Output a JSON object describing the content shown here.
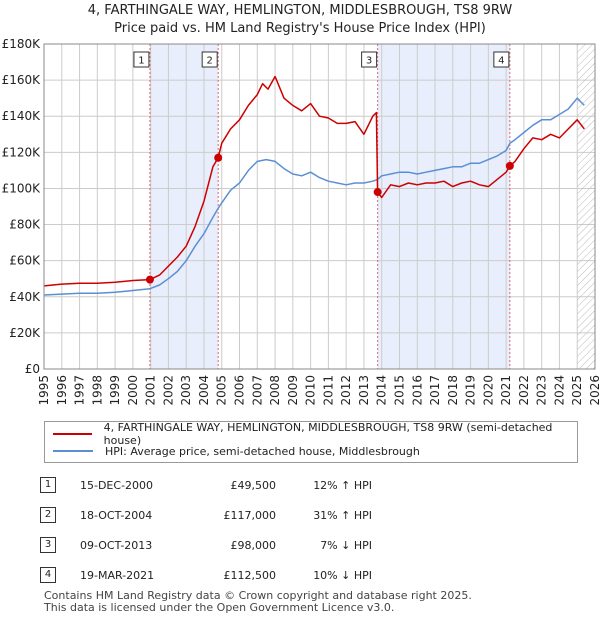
{
  "title_line1": "4, FARTHINGALE WAY, HEMLINGTON, MIDDLESBROUGH, TS8 9RW",
  "title_line2": "Price paid vs. HM Land Registry's House Price Index (HPI)",
  "legend": {
    "property": "4, FARTHINGALE WAY, HEMLINGTON, MIDDLESBROUGH, TS8 9RW (semi-detached house)",
    "hpi": "HPI: Average price, semi-detached house, Middlesbrough"
  },
  "colors": {
    "property": "#cc0000",
    "hpi": "#5b8fd4",
    "shade": "#e8eefb",
    "marker_line": "#e06666",
    "grid": "#cccccc"
  },
  "sales": [
    {
      "num": "1",
      "date": "15-DEC-2000",
      "price": "£49,500",
      "hpi": "12% ↑ HPI"
    },
    {
      "num": "2",
      "date": "18-OCT-2004",
      "price": "£117,000",
      "hpi": "31% ↑ HPI"
    },
    {
      "num": "3",
      "date": "09-OCT-2013",
      "price": "£98,000",
      "hpi": "7% ↓ HPI"
    },
    {
      "num": "4",
      "date": "19-MAR-2021",
      "price": "£112,500",
      "hpi": "10% ↓ HPI"
    }
  ],
  "footer_line1": "Contains HM Land Registry data © Crown copyright and database right 2025.",
  "footer_line2": "This data is licensed under the Open Government Licence v3.0.",
  "chart_data": {
    "type": "line",
    "x_range": [
      1995,
      2026
    ],
    "ylim": [
      0,
      180000
    ],
    "y_ticks": [
      0,
      20000,
      40000,
      60000,
      80000,
      100000,
      120000,
      140000,
      160000,
      180000
    ],
    "y_tick_labels": [
      "£0",
      "£20K",
      "£40K",
      "£60K",
      "£80K",
      "£100K",
      "£120K",
      "£140K",
      "£160K",
      "£180K"
    ],
    "x_ticks": [
      1995,
      1996,
      1997,
      1998,
      1999,
      2000,
      2001,
      2002,
      2003,
      2004,
      2005,
      2006,
      2007,
      2008,
      2009,
      2010,
      2011,
      2012,
      2013,
      2014,
      2015,
      2016,
      2017,
      2018,
      2019,
      2020,
      2021,
      2022,
      2023,
      2024,
      2025,
      2026
    ],
    "grid": true,
    "shaded_ranges": [
      [
        2000.96,
        2004.8
      ],
      [
        2013.77,
        2021.21
      ]
    ],
    "hatched_from": 2025.0,
    "markers": [
      {
        "label": "1",
        "x": 2000.96,
        "y": 49500
      },
      {
        "label": "2",
        "x": 2004.8,
        "y": 117000
      },
      {
        "label": "3",
        "x": 2013.77,
        "y": 98000
      },
      {
        "label": "4",
        "x": 2021.21,
        "y": 112500
      }
    ],
    "series": [
      {
        "name": "4, FARTHINGALE WAY, HEMLINGTON, MIDDLESBROUGH, TS8 9RW (semi-detached house)",
        "x": [
          1995,
          1996,
          1997,
          1998,
          1999,
          2000,
          2000.96,
          2001.5,
          2002,
          2002.5,
          2003,
          2003.5,
          2004,
          2004.5,
          2004.8,
          2005,
          2005.5,
          2006,
          2006.5,
          2007,
          2007.3,
          2007.6,
          2008,
          2008.5,
          2009,
          2009.5,
          2010,
          2010.5,
          2011,
          2011.5,
          2012,
          2012.5,
          2013,
          2013.5,
          2013.7,
          2013.77,
          2014,
          2014.5,
          2015,
          2015.5,
          2016,
          2016.5,
          2017,
          2017.5,
          2018,
          2018.5,
          2019,
          2019.5,
          2020,
          2020.5,
          2021,
          2021.21,
          2021.5,
          2022,
          2022.5,
          2023,
          2023.5,
          2024,
          2024.5,
          2025,
          2025.4
        ],
        "values": [
          46000,
          47000,
          47500,
          47500,
          48000,
          49000,
          49500,
          52000,
          57000,
          62000,
          68000,
          79000,
          93000,
          112000,
          117000,
          125000,
          133000,
          138000,
          146000,
          152000,
          158000,
          155000,
          162000,
          150000,
          146000,
          143000,
          147000,
          140000,
          139000,
          136000,
          136000,
          137000,
          130000,
          140000,
          142000,
          98000,
          95000,
          102000,
          101000,
          103000,
          102000,
          103000,
          103000,
          104000,
          101000,
          103000,
          104000,
          102000,
          101000,
          105000,
          109000,
          112500,
          115000,
          122000,
          128000,
          127000,
          130000,
          128000,
          133000,
          138000,
          133000
        ]
      },
      {
        "name": "HPI: Average price, semi-detached house, Middlesbrough",
        "x": [
          1995,
          1996,
          1997,
          1998,
          1999,
          2000,
          2000.96,
          2001.5,
          2002,
          2002.5,
          2003,
          2003.5,
          2004,
          2004.5,
          2004.8,
          2005,
          2005.5,
          2006,
          2006.5,
          2007,
          2007.5,
          2008,
          2008.5,
          2009,
          2009.5,
          2010,
          2010.5,
          2011,
          2011.5,
          2012,
          2012.5,
          2013,
          2013.5,
          2013.77,
          2014,
          2014.5,
          2015,
          2015.5,
          2016,
          2016.5,
          2017,
          2017.5,
          2018,
          2018.5,
          2019,
          2019.5,
          2020,
          2020.5,
          2021,
          2021.21,
          2021.5,
          2022,
          2022.5,
          2023,
          2023.5,
          2024,
          2024.5,
          2025,
          2025.4
        ],
        "values": [
          41000,
          41500,
          42000,
          42000,
          42500,
          43500,
          44500,
          46500,
          50000,
          54000,
          60000,
          68000,
          75000,
          84000,
          89000,
          92000,
          99000,
          103000,
          110000,
          115000,
          116000,
          115000,
          111000,
          108000,
          107000,
          109000,
          106000,
          104000,
          103000,
          102000,
          103000,
          103000,
          104000,
          105000,
          107000,
          108000,
          109000,
          109000,
          108000,
          109000,
          110000,
          111000,
          112000,
          112000,
          114000,
          114000,
          116000,
          118000,
          121000,
          125000,
          127000,
          131000,
          135000,
          138000,
          138000,
          141000,
          144000,
          150000,
          146000
        ]
      }
    ]
  }
}
